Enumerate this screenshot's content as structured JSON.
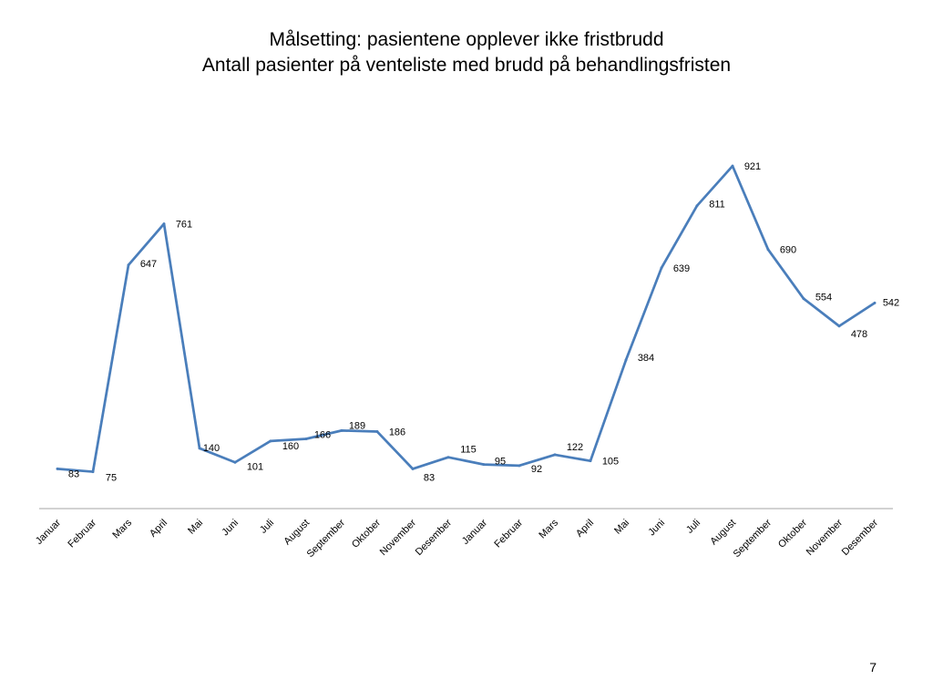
{
  "slide": {
    "title_line1": "Målsetting: pasientene opplever ikke fristbrudd",
    "title_line2": "Antall pasienter på venteliste med brudd på behandlingsfristen",
    "page_number": "7"
  },
  "chart_data": {
    "type": "line",
    "title": "Antall pasienter på venteliste med brudd på behandlingsfristen",
    "categories": [
      "Januar",
      "Februar",
      "Mars",
      "April",
      "Mai",
      "Juni",
      "Juli",
      "August",
      "September",
      "Oktober",
      "November",
      "Desember",
      "Januar",
      "Februar",
      "Mars",
      "April",
      "Mai",
      "Juni",
      "Juli",
      "August",
      "September",
      "Oktober",
      "November",
      "Desember"
    ],
    "series": [
      {
        "values": [
          83,
          75,
          647,
          761,
          140,
          101,
          160,
          166,
          189,
          186,
          83,
          115,
          95,
          92,
          122,
          105,
          384,
          639,
          811,
          921,
          690,
          554,
          478,
          542
        ],
        "color": "#4a7ebb"
      }
    ],
    "ylim": [
      0,
      1000
    ],
    "grid": false,
    "legend": "none",
    "data_labels": true
  }
}
